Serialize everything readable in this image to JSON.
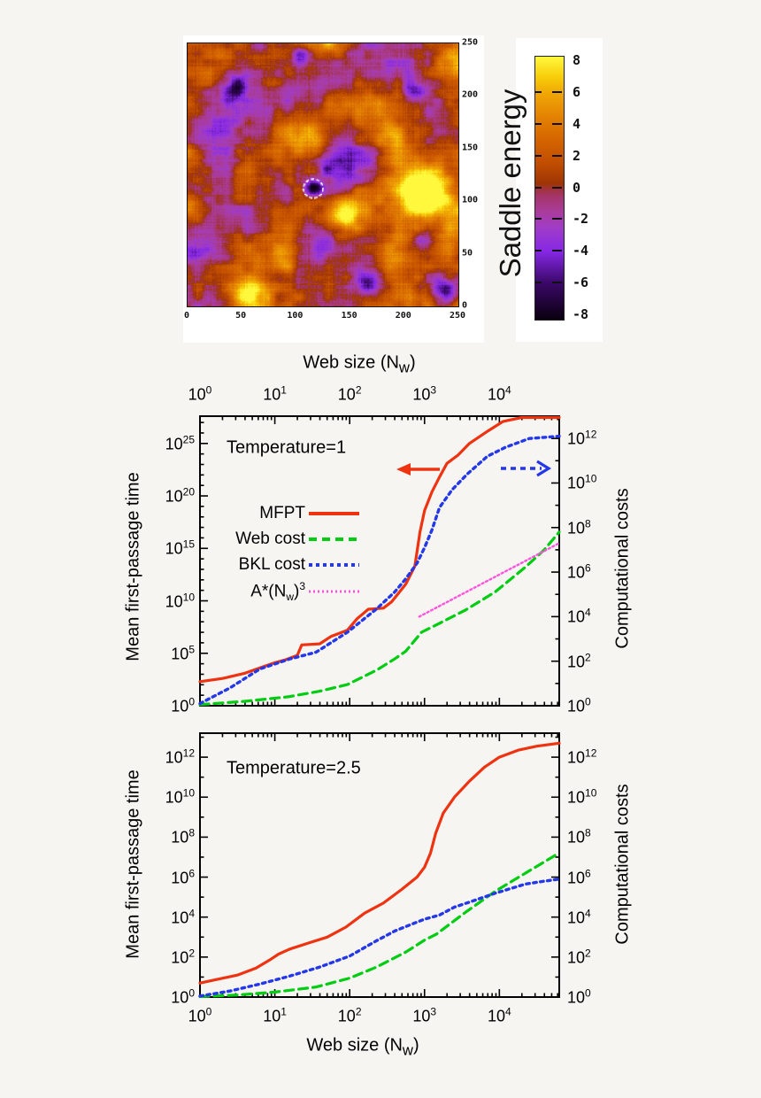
{
  "figure": {
    "background": "#f6f5f2",
    "panel_background": "#ffffff"
  },
  "colors": {
    "mfpt_red": "#ee3311",
    "web_green": "#00cc11",
    "bkl_blue": "#2438e8",
    "astar_magenta": "#ff55dd",
    "axis_black": "#000000"
  },
  "chart_data": [
    {
      "type": "heatmap",
      "name": "saddle-energy-landscape",
      "x_range": [
        0,
        250
      ],
      "y_range": [
        0,
        250
      ],
      "x_tick_labels": [
        "0",
        "50",
        "100",
        "150",
        "200",
        "250"
      ],
      "y_tick_labels": [
        "0",
        "50",
        "100",
        "150",
        "200",
        "250"
      ],
      "colorbar": {
        "title": "Saddle energy",
        "tick_labels": [
          "8",
          "6",
          "4",
          "2",
          "0",
          "-2",
          "-4",
          "-6",
          "-8"
        ],
        "range": [
          -8.3,
          8.3
        ],
        "gradient": [
          {
            "v": -8.3,
            "c": "#0a000e"
          },
          {
            "v": -6.0,
            "c": "#3a0868"
          },
          {
            "v": -4.0,
            "c": "#8628e4"
          },
          {
            "v": -2.5,
            "c": "#a03cc8"
          },
          {
            "v": -1.5,
            "c": "#aa3c9b"
          },
          {
            "v": -0.5,
            "c": "#a53569"
          },
          {
            "v": -0.1,
            "c": "#a03340"
          },
          {
            "v": 0.3,
            "c": "#9e3505"
          },
          {
            "v": 1.5,
            "c": "#bf4c00"
          },
          {
            "v": 3.0,
            "c": "#d46400"
          },
          {
            "v": 4.5,
            "c": "#e48203"
          },
          {
            "v": 6.0,
            "c": "#f0a705"
          },
          {
            "v": 7.0,
            "c": "#f8cd0a"
          },
          {
            "v": 8.3,
            "c": "#fff83c"
          }
        ]
      },
      "noise": {
        "seed": 11,
        "base": 1.35,
        "low_cells": 9,
        "low_amp": 3.1,
        "mid_cells": 27,
        "mid_amp": 1.5,
        "streak_amp": 0.75,
        "pixel_amp": 0.4
      },
      "features": {
        "peaks": [
          {
            "x": 111,
            "y": 164,
            "amp": 7.5,
            "sigma": 14
          },
          {
            "x": 190,
            "y": 162,
            "amp": 6,
            "sigma": 11
          },
          {
            "x": 214,
            "y": 108,
            "amp": 8,
            "sigma": 16
          },
          {
            "x": 225,
            "y": 95,
            "amp": 3,
            "sigma": 26
          },
          {
            "x": 149,
            "y": 91,
            "amp": 8,
            "sigma": 13
          },
          {
            "x": 57,
            "y": 12,
            "amp": 6.5,
            "sigma": 12
          },
          {
            "x": 89,
            "y": 44,
            "amp": 4.5,
            "sigma": 9
          },
          {
            "x": 3,
            "y": 95,
            "amp": 5.5,
            "sigma": 10
          },
          {
            "x": 247,
            "y": 233,
            "amp": 5.5,
            "sigma": 12
          },
          {
            "x": 130,
            "y": 251,
            "amp": 4,
            "sigma": 9
          }
        ],
        "wells": [
          {
            "x": 44,
            "y": 208,
            "amp": -7,
            "sigma": 10
          },
          {
            "x": 106,
            "y": 237,
            "amp": -5.5,
            "sigma": 7
          },
          {
            "x": 116,
            "y": 112,
            "amp": -9,
            "sigma": 6
          },
          {
            "x": 217,
            "y": 61,
            "amp": -7,
            "sigma": 9
          },
          {
            "x": 236,
            "y": 12,
            "amp": -7.5,
            "sigma": 9
          },
          {
            "x": 209,
            "y": 205,
            "amp": -5,
            "sigma": 8
          },
          {
            "x": 165,
            "y": 19,
            "amp": -4.5,
            "sigma": 7
          },
          {
            "x": 8,
            "y": 49,
            "amp": -4.5,
            "sigma": 6
          },
          {
            "x": 65,
            "y": 248,
            "amp": -5,
            "sigma": 6
          },
          {
            "x": 128,
            "y": 129,
            "amp": -4,
            "sigma": 4
          },
          {
            "x": 60,
            "y": 170,
            "amp": -3.5,
            "sigma": 28
          },
          {
            "x": 20,
            "y": 95,
            "amp": -2.5,
            "sigma": 20
          },
          {
            "x": 150,
            "y": 135,
            "amp": -3,
            "sigma": 18
          },
          {
            "x": 105,
            "y": 210,
            "amp": -3,
            "sigma": 22
          },
          {
            "x": 230,
            "y": 170,
            "amp": -2.5,
            "sigma": 16
          },
          {
            "x": 130,
            "y": 60,
            "amp": -2.5,
            "sigma": 16
          },
          {
            "x": 200,
            "y": 245,
            "amp": -3,
            "sigma": 18
          },
          {
            "x": 28,
            "y": 28,
            "amp": -2.5,
            "sigma": 14
          }
        ],
        "marked_state": {
          "x": 116,
          "y": 112,
          "radius": 9,
          "outline": "#ffffff"
        }
      }
    },
    {
      "type": "line",
      "name": "temperature-1",
      "annotation": "Temperature=1",
      "xlabel": "Web size (N_w)",
      "xlabel_position": "top",
      "ylabel_left": "Mean first-passage time",
      "ylabel_right": "Computational costs",
      "x_tick_labels": [
        "10^0",
        "10^1",
        "10^2",
        "10^3",
        "10^4"
      ],
      "left_tick_labels": [
        "10^0",
        "10^5",
        "10^10",
        "10^15",
        "10^20",
        "10^25"
      ],
      "right_tick_labels": [
        "10^0",
        "10^2",
        "10^4",
        "10^6",
        "10^8",
        "10^10",
        "10^12"
      ],
      "x_range_log10": [
        0,
        4.8
      ],
      "left_range_log10": [
        0,
        27.6
      ],
      "right_range_log10": [
        0,
        13.0
      ],
      "legend": [
        {
          "label": "MFPT",
          "style": "solid",
          "color": "#ee3311"
        },
        {
          "label": "Web cost",
          "style": "dashed",
          "color": "#00cc11"
        },
        {
          "label": "BKL cost",
          "style": "dotted",
          "color": "#2438e8"
        },
        {
          "label": "A*(N_w)^3",
          "style": "fine",
          "color": "#ff55dd"
        }
      ],
      "arrows": [
        {
          "meaning": "mfpt-uses-left-axis",
          "direction": "left",
          "style": "solid",
          "color": "#ee3311"
        },
        {
          "meaning": "costs-use-right-axis",
          "direction": "right",
          "style": "dashed",
          "color": "#2438e8"
        }
      ],
      "series": [
        {
          "name": "MFPT",
          "axis": "left",
          "style": "solid",
          "color": "#ee3311",
          "points_log10": [
            [
              0,
              2.3
            ],
            [
              0.3,
              2.6
            ],
            [
              0.6,
              3.1
            ],
            [
              0.8,
              3.6
            ],
            [
              1.0,
              4.1
            ],
            [
              1.15,
              4.4
            ],
            [
              1.3,
              4.8
            ],
            [
              1.36,
              5.8
            ],
            [
              1.6,
              5.9
            ],
            [
              1.75,
              6.6
            ],
            [
              1.97,
              7.2
            ],
            [
              2.1,
              8.3
            ],
            [
              2.25,
              9.2
            ],
            [
              2.45,
              9.3
            ],
            [
              2.56,
              9.9
            ],
            [
              2.75,
              11.6
            ],
            [
              2.87,
              13.3
            ],
            [
              2.94,
              16.6
            ],
            [
              3.0,
              18.6
            ],
            [
              3.1,
              20.4
            ],
            [
              3.2,
              21.8
            ],
            [
              3.3,
              23.1
            ],
            [
              3.45,
              23.9
            ],
            [
              3.6,
              25.0
            ],
            [
              3.85,
              26.2
            ],
            [
              4.05,
              27.1
            ],
            [
              4.3,
              27.5
            ],
            [
              4.6,
              27.65
            ],
            [
              4.8,
              27.7
            ]
          ]
        },
        {
          "name": "Web cost",
          "axis": "right",
          "style": "dashed",
          "color": "#00cc11",
          "points_log10": [
            [
              0,
              0.05
            ],
            [
              0.6,
              0.2
            ],
            [
              1.18,
              0.4
            ],
            [
              1.6,
              0.65
            ],
            [
              1.97,
              0.95
            ],
            [
              2.36,
              1.6
            ],
            [
              2.6,
              2.1
            ],
            [
              2.75,
              2.45
            ],
            [
              2.96,
              3.3
            ],
            [
              3.2,
              3.7
            ],
            [
              3.55,
              4.3
            ],
            [
              3.94,
              5.1
            ],
            [
              4.34,
              6.2
            ],
            [
              4.6,
              7.0
            ],
            [
              4.8,
              7.8
            ]
          ]
        },
        {
          "name": "BKL cost",
          "axis": "right",
          "style": "dotted",
          "color": "#2438e8",
          "points_log10": [
            [
              0,
              0.1
            ],
            [
              0.4,
              0.8
            ],
            [
              0.8,
              1.65
            ],
            [
              1.2,
              2.1
            ],
            [
              1.55,
              2.4
            ],
            [
              1.97,
              3.3
            ],
            [
              2.36,
              4.35
            ],
            [
              2.6,
              5.1
            ],
            [
              2.75,
              5.7
            ],
            [
              2.9,
              6.4
            ],
            [
              3.0,
              7.1
            ],
            [
              3.1,
              7.9
            ],
            [
              3.2,
              8.9
            ],
            [
              3.37,
              9.7
            ],
            [
              3.57,
              10.4
            ],
            [
              3.84,
              11.2
            ],
            [
              4.08,
              11.6
            ],
            [
              4.4,
              12.0
            ],
            [
              4.8,
              12.1
            ]
          ]
        },
        {
          "name": "A*(N_w)^3",
          "axis": "right",
          "style": "fine",
          "color": "#ff55dd",
          "points_log10": [
            [
              2.93,
              4.0
            ],
            [
              4.8,
              7.3
            ]
          ]
        }
      ]
    },
    {
      "type": "line",
      "name": "temperature-2.5",
      "annotation": "Temperature=2.5",
      "xlabel": "Web size (N_w)",
      "xlabel_position": "bottom",
      "ylabel_left": "Mean first-passage time",
      "ylabel_right": "Computational costs",
      "x_tick_labels": [
        "10^0",
        "10^1",
        "10^2",
        "10^3",
        "10^4"
      ],
      "left_tick_labels": [
        "10^0",
        "10^2",
        "10^4",
        "10^6",
        "10^8",
        "10^10",
        "10^12"
      ],
      "right_tick_labels": [
        "10^0",
        "10^2",
        "10^4",
        "10^6",
        "10^8",
        "10^10",
        "10^12"
      ],
      "x_range_log10": [
        0,
        4.8
      ],
      "left_range_log10": [
        0,
        13.2
      ],
      "right_range_log10": [
        0,
        13.2
      ],
      "series": [
        {
          "name": "MFPT",
          "axis": "left",
          "style": "solid",
          "color": "#ee3311",
          "points_log10": [
            [
              0,
              0.7
            ],
            [
              0.25,
              0.9
            ],
            [
              0.5,
              1.1
            ],
            [
              0.75,
              1.45
            ],
            [
              0.95,
              1.9
            ],
            [
              1.05,
              2.15
            ],
            [
              1.2,
              2.4
            ],
            [
              1.45,
              2.7
            ],
            [
              1.7,
              3.0
            ],
            [
              1.95,
              3.5
            ],
            [
              2.2,
              4.2
            ],
            [
              2.45,
              4.7
            ],
            [
              2.7,
              5.4
            ],
            [
              2.9,
              6.0
            ],
            [
              3.0,
              6.5
            ],
            [
              3.08,
              7.2
            ],
            [
              3.15,
              8.2
            ],
            [
              3.25,
              9.2
            ],
            [
              3.4,
              10.0
            ],
            [
              3.6,
              10.8
            ],
            [
              3.8,
              11.5
            ],
            [
              4.0,
              12.0
            ],
            [
              4.25,
              12.35
            ],
            [
              4.5,
              12.55
            ],
            [
              4.8,
              12.7
            ]
          ]
        },
        {
          "name": "Web cost",
          "axis": "right",
          "style": "dashed",
          "color": "#00cc11",
          "points_log10": [
            [
              0,
              0.02
            ],
            [
              0.5,
              0.1
            ],
            [
              1.0,
              0.25
            ],
            [
              1.55,
              0.5
            ],
            [
              2.0,
              0.95
            ],
            [
              2.36,
              1.5
            ],
            [
              2.75,
              2.25
            ],
            [
              3.0,
              2.85
            ],
            [
              3.16,
              3.15
            ],
            [
              3.55,
              4.25
            ],
            [
              3.95,
              5.3
            ],
            [
              4.35,
              6.2
            ],
            [
              4.75,
              7.1
            ],
            [
              4.8,
              7.2
            ]
          ]
        },
        {
          "name": "BKL cost",
          "axis": "right",
          "style": "dotted",
          "color": "#2438e8",
          "points_log10": [
            [
              0,
              0.05
            ],
            [
              0.4,
              0.3
            ],
            [
              0.8,
              0.65
            ],
            [
              1.2,
              1.05
            ],
            [
              1.6,
              1.5
            ],
            [
              2.0,
              2.05
            ],
            [
              2.35,
              2.8
            ],
            [
              2.6,
              3.3
            ],
            [
              2.8,
              3.6
            ],
            [
              3.0,
              3.9
            ],
            [
              3.2,
              4.1
            ],
            [
              3.4,
              4.5
            ],
            [
              3.6,
              4.75
            ],
            [
              3.95,
              5.2
            ],
            [
              4.35,
              5.65
            ],
            [
              4.6,
              5.8
            ],
            [
              4.8,
              5.9
            ]
          ]
        }
      ]
    }
  ]
}
